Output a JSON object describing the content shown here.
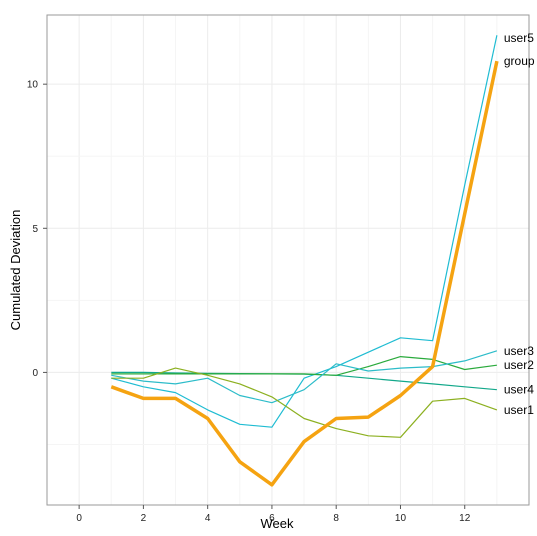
{
  "chart_data": {
    "type": "line",
    "title": "",
    "xlabel": "Week",
    "ylabel": "Cumulated Deviation",
    "xlim": [
      -1,
      14
    ],
    "ylim": [
      -4.6,
      12.4
    ],
    "x_ticks": [
      0,
      2,
      4,
      6,
      8,
      10,
      12
    ],
    "y_ticks": [
      0,
      5,
      10
    ],
    "grid": true,
    "legend": "direct-labels-right",
    "series": [
      {
        "name": "user5",
        "color": "#1fbcd2",
        "width": 1.2,
        "x": [
          1,
          2,
          3,
          4,
          5,
          6,
          7,
          8,
          9,
          10,
          11,
          12,
          13
        ],
        "y": [
          -0.2,
          -0.5,
          -0.7,
          -1.3,
          -1.8,
          -1.9,
          -0.2,
          0.2,
          0.7,
          1.2,
          1.1,
          6.5,
          11.7
        ]
      },
      {
        "name": "group",
        "color": "#f5a311",
        "width": 3.5,
        "x": [
          1,
          2,
          3,
          4,
          5,
          6,
          7,
          8,
          9,
          10,
          11,
          12,
          13
        ],
        "y": [
          -0.5,
          -0.9,
          -0.9,
          -1.6,
          -3.1,
          -3.9,
          -2.4,
          -1.6,
          -1.55,
          -0.8,
          0.2,
          5.5,
          10.8
        ]
      },
      {
        "name": "user3",
        "color": "#12a88a",
        "width": 1.2,
        "x": [
          1,
          2,
          3,
          4,
          5,
          6,
          7,
          8,
          9,
          10,
          11,
          12,
          13
        ],
        "y": [
          0.0,
          0.0,
          -0.02,
          -0.03,
          -0.04,
          -0.05,
          -0.06,
          -0.1,
          -0.2,
          -0.3,
          -0.4,
          -0.5,
          -0.6
        ]
      },
      {
        "name": "user2",
        "color": "#2aaa3c",
        "width": 1.2,
        "x": [
          1,
          2,
          3,
          4,
          5,
          6,
          7,
          8,
          9,
          10,
          11,
          12,
          13
        ],
        "y": [
          -0.05,
          -0.05,
          -0.05,
          -0.05,
          -0.05,
          -0.05,
          -0.05,
          -0.1,
          0.2,
          0.55,
          0.45,
          0.1,
          0.25
        ]
      },
      {
        "name": "user4",
        "color": "#2cbcc9",
        "width": 1.2,
        "x": [
          1,
          2,
          3,
          4,
          5,
          6,
          7,
          8,
          9,
          10,
          11,
          12,
          13
        ],
        "y": [
          -0.1,
          -0.3,
          -0.4,
          -0.2,
          -0.8,
          -1.05,
          -0.6,
          0.3,
          0.05,
          0.15,
          0.2,
          0.4,
          0.75
        ]
      },
      {
        "name": "user1",
        "color": "#8cb020",
        "width": 1.2,
        "x": [
          1,
          2,
          3,
          4,
          5,
          6,
          7,
          8,
          9,
          10,
          11,
          12,
          13
        ],
        "y": [
          -0.2,
          -0.2,
          0.15,
          -0.1,
          -0.4,
          -0.85,
          -1.6,
          -1.95,
          -2.2,
          -2.25,
          -1.0,
          -0.9,
          -1.3
        ]
      }
    ],
    "series_labels": [
      {
        "name": "user5",
        "y": 11.6
      },
      {
        "name": "group",
        "y": 10.8
      },
      {
        "name": "user3",
        "y": 0.75
      },
      {
        "name": "user2",
        "y": 0.25
      },
      {
        "name": "user4",
        "y": -0.6
      },
      {
        "name": "user1",
        "y": -1.3
      }
    ]
  }
}
